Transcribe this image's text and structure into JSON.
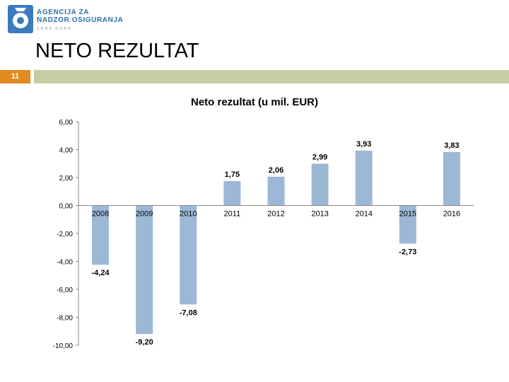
{
  "header": {
    "logo_icon": "agency-logo-icon",
    "org_line1": "AGENCIJA ZA",
    "org_line2": "NADZOR OSIGURANJA",
    "org_line3": "CRNA GORA"
  },
  "slide": {
    "title": "NETO REZULTAT",
    "number": "11"
  },
  "colors": {
    "bar": "#9db8d6",
    "accent": "#e08a1f",
    "band": "#c5cda4"
  },
  "chart_data": {
    "type": "bar",
    "title": "Neto rezultat (u mil. EUR)",
    "xlabel": "",
    "ylabel": "",
    "categories": [
      "2008",
      "2009",
      "2010",
      "2011",
      "2012",
      "2013",
      "2014",
      "2015",
      "2016"
    ],
    "values": [
      -4.24,
      -9.2,
      -7.08,
      1.75,
      2.06,
      2.99,
      3.93,
      -2.73,
      3.83
    ],
    "data_labels": [
      "-4,24",
      "-9,20",
      "-7,08",
      "1,75",
      "2,06",
      "2,99",
      "3,93",
      "-2,73",
      "3,83"
    ],
    "ylim": [
      -10,
      6
    ],
    "y_ticks": [
      6,
      4,
      2,
      0,
      -2,
      -4,
      -6,
      -8,
      -10
    ],
    "y_tick_labels": [
      "6,00",
      "4,00",
      "2,00",
      "0,00",
      "-2,00",
      "-4,00",
      "-6,00",
      "-8,00",
      "-10,00"
    ],
    "grid": false,
    "legend": "none"
  }
}
